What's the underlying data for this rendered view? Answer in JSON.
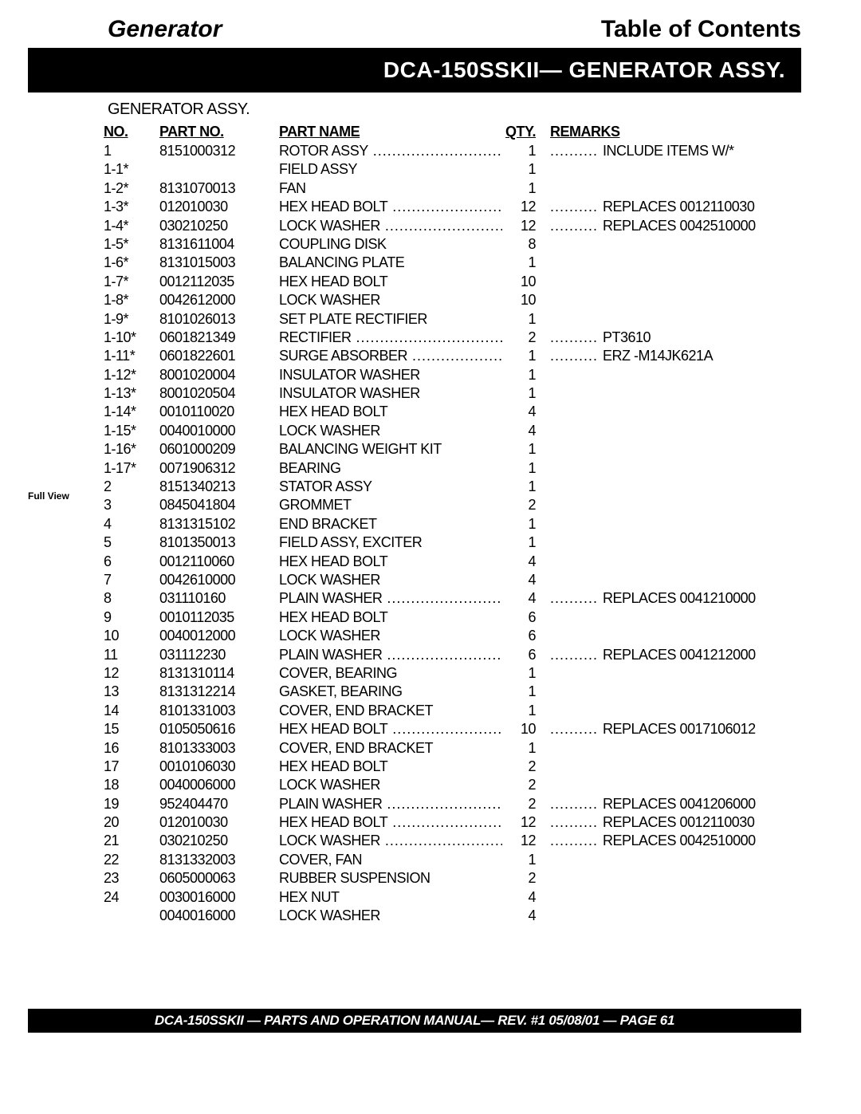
{
  "header": {
    "left": "Generator",
    "right": "Table of Contents"
  },
  "titleBar": "DCA-150SSKII— GENERATOR ASSY.",
  "subtitle": "GENERATOR ASSY.",
  "fullView": "Full View",
  "columns": {
    "no": "NO.",
    "partNo": "PART NO.",
    "partName": "PART NAME",
    "qty": "QTY.",
    "remarks": "REMARKS"
  },
  "rows": [
    {
      "no": "1",
      "partNo": "8151000312",
      "partName": "ROTOR ASSY",
      "qty": "1",
      "remarks": "INCLUDE ITEMS W/*",
      "dots": true
    },
    {
      "no": "1-1*",
      "partNo": "",
      "partName": "FIELD ASSY",
      "qty": "1",
      "remarks": "",
      "dots": false
    },
    {
      "no": "1-2*",
      "partNo": "8131070013",
      "partName": "FAN",
      "qty": "1",
      "remarks": "",
      "dots": false
    },
    {
      "no": "1-3*",
      "partNo": "012010030",
      "partName": "HEX HEAD BOLT",
      "qty": "12",
      "remarks": "REPLACES 0012110030",
      "dots": true
    },
    {
      "no": "1-4*",
      "partNo": "030210250",
      "partName": "LOCK WASHER",
      "qty": "12",
      "remarks": "REPLACES 0042510000",
      "dots": true
    },
    {
      "no": "1-5*",
      "partNo": "8131611004",
      "partName": "COUPLING DISK",
      "qty": "8",
      "remarks": "",
      "dots": false
    },
    {
      "no": "1-6*",
      "partNo": "8131015003",
      "partName": "BALANCING PLATE",
      "qty": "1",
      "remarks": "",
      "dots": false
    },
    {
      "no": "1-7*",
      "partNo": "0012112035",
      "partName": "HEX HEAD BOLT",
      "qty": "10",
      "remarks": "",
      "dots": false
    },
    {
      "no": "1-8*",
      "partNo": "0042612000",
      "partName": "LOCK WASHER",
      "qty": "10",
      "remarks": "",
      "dots": false
    },
    {
      "no": "1-9*",
      "partNo": "8101026013",
      "partName": "SET PLATE RECTIFIER",
      "qty": "1",
      "remarks": "",
      "dots": false
    },
    {
      "no": "1-10*",
      "partNo": "0601821349",
      "partName": "RECTIFIER",
      "qty": "2",
      "remarks": "PT3610",
      "dots": true
    },
    {
      "no": "1-11*",
      "partNo": "0601822601",
      "partName": "SURGE ABSORBER",
      "qty": "1",
      "remarks": "ERZ -M14JK621A",
      "dots": true
    },
    {
      "no": "1-12*",
      "partNo": "8001020004",
      "partName": "INSULATOR WASHER",
      "qty": "1",
      "remarks": "",
      "dots": false
    },
    {
      "no": "1-13*",
      "partNo": "8001020504",
      "partName": "INSULATOR WASHER",
      "qty": "1",
      "remarks": "",
      "dots": false
    },
    {
      "no": "1-14*",
      "partNo": "0010110020",
      "partName": "HEX HEAD BOLT",
      "qty": "4",
      "remarks": "",
      "dots": false
    },
    {
      "no": "1-15*",
      "partNo": "0040010000",
      "partName": "LOCK WASHER",
      "qty": "4",
      "remarks": "",
      "dots": false
    },
    {
      "no": "1-16*",
      "partNo": "0601000209",
      "partName": "BALANCING WEIGHT KIT",
      "qty": "1",
      "remarks": "",
      "dots": false
    },
    {
      "no": "1-17*",
      "partNo": "0071906312",
      "partName": "BEARING",
      "qty": "1",
      "remarks": "",
      "dots": false
    },
    {
      "no": "2",
      "partNo": "8151340213",
      "partName": "STATOR ASSY",
      "qty": "1",
      "remarks": "",
      "dots": false
    },
    {
      "no": "3",
      "partNo": "0845041804",
      "partName": "GROMMET",
      "qty": "2",
      "remarks": "",
      "dots": false
    },
    {
      "no": "4",
      "partNo": "8131315102",
      "partName": "END BRACKET",
      "qty": "1",
      "remarks": "",
      "dots": false
    },
    {
      "no": "5",
      "partNo": "8101350013",
      "partName": "FIELD ASSY, EXCITER",
      "qty": "1",
      "remarks": "",
      "dots": false
    },
    {
      "no": "6",
      "partNo": "0012110060",
      "partName": "HEX HEAD BOLT",
      "qty": "4",
      "remarks": "",
      "dots": false
    },
    {
      "no": "7",
      "partNo": "0042610000",
      "partName": "LOCK WASHER",
      "qty": "4",
      "remarks": "",
      "dots": false
    },
    {
      "no": "8",
      "partNo": "031110160",
      "partName": "PLAIN WASHER",
      "qty": "4",
      "remarks": "REPLACES 0041210000",
      "dots": true
    },
    {
      "no": "9",
      "partNo": "0010112035",
      "partName": "HEX HEAD BOLT",
      "qty": "6",
      "remarks": "",
      "dots": false
    },
    {
      "no": "10",
      "partNo": "0040012000",
      "partName": "LOCK WASHER",
      "qty": "6",
      "remarks": "",
      "dots": false
    },
    {
      "no": "11",
      "partNo": "031112230",
      "partName": "PLAIN WASHER",
      "qty": "6",
      "remarks": "REPLACES 0041212000",
      "dots": true
    },
    {
      "no": "12",
      "partNo": "8131310114",
      "partName": "COVER, BEARING",
      "qty": "1",
      "remarks": "",
      "dots": false
    },
    {
      "no": "13",
      "partNo": "8131312214",
      "partName": "GASKET, BEARING",
      "qty": "1",
      "remarks": "",
      "dots": false
    },
    {
      "no": "14",
      "partNo": "8101331003",
      "partName": "COVER, END BRACKET",
      "qty": "1",
      "remarks": "",
      "dots": false
    },
    {
      "no": "15",
      "partNo": "0105050616",
      "partName": "HEX HEAD BOLT",
      "qty": "10",
      "remarks": "REPLACES 0017106012",
      "dots": true
    },
    {
      "no": "16",
      "partNo": "8101333003",
      "partName": "COVER, END BRACKET",
      "qty": "1",
      "remarks": "",
      "dots": false
    },
    {
      "no": "17",
      "partNo": "0010106030",
      "partName": "HEX HEAD BOLT",
      "qty": "2",
      "remarks": "",
      "dots": false
    },
    {
      "no": "18",
      "partNo": "0040006000",
      "partName": "LOCK WASHER",
      "qty": "2",
      "remarks": "",
      "dots": false
    },
    {
      "no": "19",
      "partNo": "952404470",
      "partName": "PLAIN WASHER",
      "qty": "2",
      "remarks": "REPLACES 0041206000",
      "dots": true
    },
    {
      "no": "20",
      "partNo": "012010030",
      "partName": "HEX HEAD BOLT",
      "qty": "12",
      "remarks": "REPLACES 0012110030",
      "dots": true
    },
    {
      "no": "21",
      "partNo": "030210250",
      "partName": "LOCK WASHER",
      "qty": "12",
      "remarks": "REPLACES 0042510000",
      "dots": true
    },
    {
      "no": "22",
      "partNo": "8131332003",
      "partName": "COVER, FAN",
      "qty": "1",
      "remarks": "",
      "dots": false
    },
    {
      "no": "23",
      "partNo": "0605000063",
      "partName": "RUBBER SUSPENSION",
      "qty": "2",
      "remarks": "",
      "dots": false
    },
    {
      "no": "24",
      "partNo": "0030016000",
      "partName": "HEX NUT",
      "qty": "4",
      "remarks": "",
      "dots": false
    },
    {
      "no": "",
      "partNo": "0040016000",
      "partName": "LOCK WASHER",
      "qty": "4",
      "remarks": "",
      "dots": false
    }
  ],
  "footer": "DCA-150SSKII — PARTS AND OPERATION  MANUAL— REV. #1  05/08/01 — PAGE 61"
}
